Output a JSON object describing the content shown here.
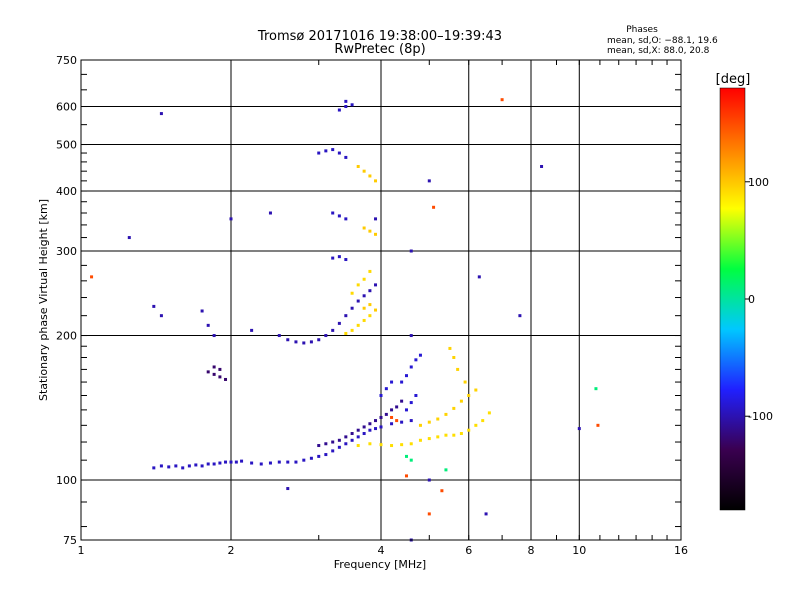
{
  "chart_data": {
    "type": "scatter",
    "title": "Tromsø 20171016 19:38:00–19:39:43",
    "subtitle": "RwPretec (8p)",
    "stats": {
      "heading": "Phases",
      "line1": "mean, sd,O: −88.1, 19.6",
      "line2": "mean, sd,X:  88.0, 20.8"
    },
    "xlabel": "Frequency [MHz]",
    "ylabel": "Stationary phase Virtual Height [km]",
    "x_scale": "log2",
    "y_scale": "log",
    "xlim": [
      1,
      16
    ],
    "ylim": [
      75,
      750
    ],
    "x_ticks": [
      1,
      2,
      4,
      6,
      8,
      10,
      16
    ],
    "x_major_grid": [
      2,
      4,
      6,
      8,
      10
    ],
    "y_ticks": [
      75,
      100,
      200,
      300,
      400,
      500,
      600,
      750
    ],
    "y_major_grid": [
      100,
      200,
      300,
      400,
      500,
      600
    ],
    "colorbar": {
      "label": "[deg]",
      "ticks": [
        {
          "value": 100,
          "label": "100"
        },
        {
          "value": 0,
          "label": "0"
        },
        {
          "value": -100,
          "label": "-100"
        }
      ],
      "range": [
        -180,
        180
      ],
      "colors": [
        "#000000",
        "#3a0050",
        "#2020ff",
        "#00c8ff",
        "#00ff40",
        "#ffff00",
        "#ff8000",
        "#ff0000"
      ]
    },
    "series": [
      {
        "points": [
          [
            1.4,
            106
          ],
          [
            1.45,
            107
          ],
          [
            1.5,
            106.5
          ],
          [
            1.55,
            107
          ],
          [
            1.6,
            106
          ],
          [
            1.65,
            107
          ],
          [
            1.7,
            107.5
          ],
          [
            1.75,
            107
          ],
          [
            1.8,
            108
          ],
          [
            1.85,
            108
          ],
          [
            1.9,
            108.5
          ],
          [
            1.95,
            109
          ],
          [
            2.0,
            109
          ],
          [
            2.05,
            109
          ],
          [
            2.1,
            109.5
          ],
          [
            2.2,
            108.5
          ],
          [
            2.3,
            108
          ],
          [
            2.4,
            108.5
          ],
          [
            2.5,
            109
          ],
          [
            2.6,
            109
          ],
          [
            2.7,
            109
          ],
          [
            2.8,
            110
          ],
          [
            2.9,
            111
          ],
          [
            3.0,
            112
          ],
          [
            3.1,
            113
          ],
          [
            3.2,
            115
          ],
          [
            3.3,
            117
          ],
          [
            3.4,
            119
          ],
          [
            3.5,
            121
          ],
          [
            3.6,
            123
          ],
          [
            3.7,
            125
          ],
          [
            3.8,
            127
          ],
          [
            3.9,
            128
          ],
          [
            4.0,
            129
          ],
          [
            4.2,
            131
          ],
          [
            4.4,
            132
          ],
          [
            4.6,
            133
          ]
        ],
        "phase": -95
      },
      {
        "points": [
          [
            3.0,
            118
          ],
          [
            3.1,
            119
          ],
          [
            3.2,
            120
          ],
          [
            3.3,
            121
          ],
          [
            3.4,
            123
          ],
          [
            3.5,
            125
          ],
          [
            3.6,
            127
          ],
          [
            3.7,
            129
          ],
          [
            3.8,
            131
          ],
          [
            3.9,
            133
          ],
          [
            4.0,
            135
          ],
          [
            4.1,
            137
          ],
          [
            4.2,
            140
          ],
          [
            4.3,
            142
          ],
          [
            4.4,
            146
          ]
        ],
        "phase": -110
      },
      {
        "points": [
          [
            3.6,
            118
          ],
          [
            3.8,
            119
          ],
          [
            4.0,
            118.5
          ],
          [
            4.2,
            118
          ],
          [
            4.4,
            118.5
          ],
          [
            4.6,
            119
          ],
          [
            4.8,
            121
          ],
          [
            5.0,
            122
          ],
          [
            5.2,
            123
          ],
          [
            5.4,
            124
          ],
          [
            5.6,
            124
          ],
          [
            5.8,
            125
          ],
          [
            6.0,
            127
          ],
          [
            6.2,
            130
          ],
          [
            6.4,
            133
          ],
          [
            6.6,
            138
          ]
        ],
        "phase": 90
      },
      {
        "points": [
          [
            4.8,
            130
          ],
          [
            5.0,
            132
          ],
          [
            5.2,
            134
          ],
          [
            5.4,
            137
          ],
          [
            5.6,
            141
          ],
          [
            5.8,
            146
          ],
          [
            6.0,
            150
          ],
          [
            6.2,
            154
          ],
          [
            5.9,
            160
          ],
          [
            5.7,
            170
          ],
          [
            5.6,
            180
          ],
          [
            5.5,
            188
          ]
        ],
        "phase": 95
      },
      {
        "points": [
          [
            2.5,
            200
          ],
          [
            2.6,
            196
          ],
          [
            2.7,
            194
          ],
          [
            2.8,
            193
          ],
          [
            2.9,
            194
          ],
          [
            3.0,
            196
          ],
          [
            3.1,
            200
          ],
          [
            3.2,
            205
          ],
          [
            3.3,
            212
          ],
          [
            3.4,
            220
          ],
          [
            3.5,
            228
          ],
          [
            3.6,
            236
          ],
          [
            3.7,
            242
          ],
          [
            3.8,
            248
          ],
          [
            3.9,
            255
          ]
        ],
        "phase": -100
      },
      {
        "points": [
          [
            3.4,
            202
          ],
          [
            3.5,
            205
          ],
          [
            3.6,
            210
          ],
          [
            3.7,
            215
          ],
          [
            3.8,
            220
          ],
          [
            3.5,
            245
          ],
          [
            3.6,
            255
          ],
          [
            3.7,
            262
          ],
          [
            3.8,
            272
          ]
        ],
        "phase": 92
      },
      {
        "points": [
          [
            1.8,
            168
          ],
          [
            1.85,
            166
          ],
          [
            1.9,
            164
          ],
          [
            1.95,
            162
          ],
          [
            1.9,
            170
          ],
          [
            1.85,
            172
          ]
        ],
        "phase": -120
      },
      {
        "points": [
          [
            3.0,
            480
          ],
          [
            3.1,
            485
          ],
          [
            3.2,
            488
          ],
          [
            3.3,
            480
          ],
          [
            3.4,
            470
          ],
          [
            3.3,
            590
          ],
          [
            3.4,
            600
          ],
          [
            3.5,
            605
          ],
          [
            3.4,
            615
          ],
          [
            3.2,
            360
          ],
          [
            3.3,
            355
          ],
          [
            3.4,
            350
          ],
          [
            3.2,
            290
          ],
          [
            3.3,
            292
          ],
          [
            3.4,
            288
          ]
        ],
        "phase": -95
      },
      {
        "points": [
          [
            3.6,
            450
          ],
          [
            3.7,
            440
          ],
          [
            3.8,
            430
          ],
          [
            3.9,
            420
          ],
          [
            3.7,
            335
          ],
          [
            3.8,
            330
          ],
          [
            3.9,
            325
          ],
          [
            3.7,
            228
          ],
          [
            3.8,
            232
          ],
          [
            3.9,
            226
          ]
        ],
        "phase": 98
      },
      {
        "points": [
          [
            4.4,
            160
          ],
          [
            4.5,
            165
          ],
          [
            4.6,
            172
          ],
          [
            4.7,
            178
          ],
          [
            4.8,
            182
          ],
          [
            4.5,
            140
          ],
          [
            4.6,
            145
          ],
          [
            4.7,
            150
          ],
          [
            4.0,
            150
          ],
          [
            4.1,
            155
          ],
          [
            4.2,
            160
          ]
        ],
        "phase": -90
      },
      {
        "points": [
          [
            1.25,
            320
          ],
          [
            1.45,
            580
          ],
          [
            1.4,
            230
          ],
          [
            1.45,
            220
          ],
          [
            2.0,
            350
          ],
          [
            2.2,
            205
          ],
          [
            2.4,
            360
          ],
          [
            1.8,
            210
          ],
          [
            1.75,
            225
          ],
          [
            1.85,
            200
          ],
          [
            2.6,
            96
          ],
          [
            6.3,
            265
          ],
          [
            7.6,
            220
          ],
          [
            8.4,
            450
          ],
          [
            10.0,
            128
          ],
          [
            6.5,
            85
          ],
          [
            5.0,
            420
          ],
          [
            4.6,
            200
          ],
          [
            4.6,
            300
          ],
          [
            3.9,
            350
          ],
          [
            5.0,
            100
          ],
          [
            4.6,
            75
          ]
        ],
        "phase": -100
      },
      {
        "points": [
          [
            1.05,
            265
          ],
          [
            7.0,
            620
          ],
          [
            10.9,
            130
          ],
          [
            5.1,
            370
          ],
          [
            4.5,
            102
          ],
          [
            5.3,
            95
          ],
          [
            5.0,
            85
          ],
          [
            4.2,
            135
          ],
          [
            4.3,
            133
          ]
        ],
        "phase": 150
      },
      {
        "points": [
          [
            10.8,
            155
          ],
          [
            4.6,
            110
          ],
          [
            5.4,
            105
          ],
          [
            4.5,
            112
          ]
        ],
        "phase": 10
      }
    ]
  }
}
